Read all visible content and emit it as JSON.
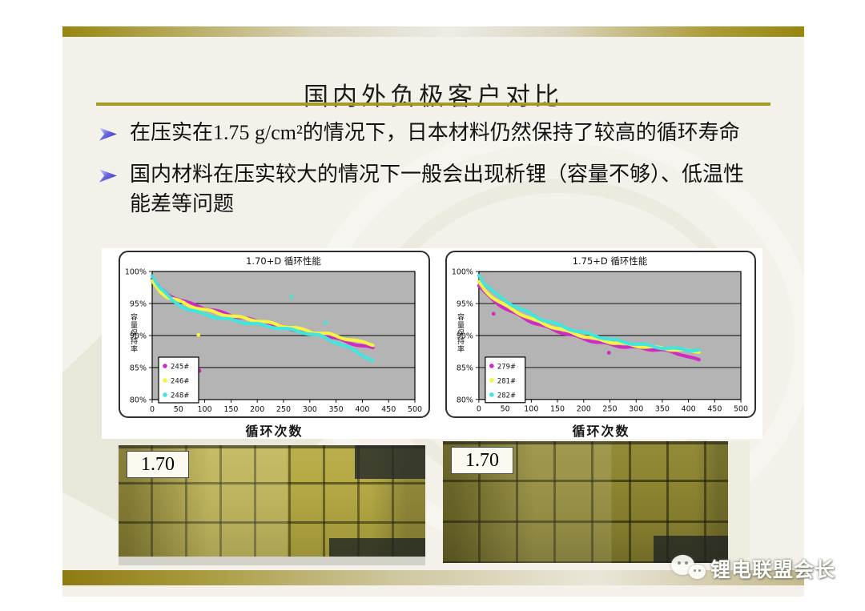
{
  "slide": {
    "title": "国内外负极客户对比",
    "bullets": [
      {
        "marker_icon": "arrow-bullet-icon",
        "text": "在压实在1.75 g/cm²的情况下，日本材料仍然保持了较高的循环寿命"
      },
      {
        "marker_icon": "arrow-bullet-icon",
        "text": "国内材料在压实较大的情况下一般会出现析锂（容量不够）、低温性能差等问题"
      }
    ]
  },
  "chart_data": [
    {
      "type": "scatter",
      "title": "1.70+D 循环性能",
      "xlabel": "循环次数",
      "ylabel": "容量保持率",
      "xlim": [
        0,
        500
      ],
      "ylim": [
        80,
        100
      ],
      "x_ticks": [
        0,
        50,
        100,
        150,
        200,
        250,
        300,
        350,
        400,
        450,
        500
      ],
      "y_ticks": [
        100,
        95,
        90,
        85,
        80
      ],
      "y_tick_labels": [
        "100%",
        "95%",
        "90%",
        "85%",
        "80%"
      ],
      "plot_bg": "#b4b4b4",
      "grid": true,
      "legend_position": "bottom-left",
      "series": [
        {
          "name": "245#",
          "color": "#cf2bc4",
          "points": [
            [
              0,
              98.8
            ],
            [
              15,
              97.3
            ],
            [
              30,
              96.4
            ],
            [
              50,
              95.7
            ],
            [
              70,
              95.0
            ],
            [
              100,
              94.3
            ],
            [
              130,
              93.6
            ],
            [
              160,
              93.0
            ],
            [
              190,
              92.4
            ],
            [
              220,
              91.9
            ],
            [
              250,
              91.3
            ],
            [
              280,
              90.8
            ],
            [
              310,
              90.3
            ],
            [
              335,
              89.9
            ],
            [
              355,
              89.4
            ],
            [
              375,
              88.9
            ],
            [
              395,
              88.5
            ],
            [
              420,
              88.0
            ]
          ]
        },
        {
          "name": "246#",
          "color": "#f5f542",
          "points": [
            [
              0,
              98.4
            ],
            [
              15,
              96.9
            ],
            [
              30,
              96.0
            ],
            [
              50,
              95.4
            ],
            [
              70,
              94.7
            ],
            [
              100,
              94.0
            ],
            [
              130,
              93.4
            ],
            [
              160,
              92.9
            ],
            [
              190,
              92.5
            ],
            [
              220,
              92.0
            ],
            [
              250,
              91.5
            ],
            [
              280,
              91.0
            ],
            [
              310,
              90.5
            ],
            [
              335,
              90.2
            ],
            [
              355,
              89.8
            ],
            [
              375,
              89.4
            ],
            [
              395,
              89.0
            ],
            [
              420,
              88.6
            ]
          ]
        },
        {
          "name": "248#",
          "color": "#40e6de",
          "points": [
            [
              0,
              99.4
            ],
            [
              12,
              97.8
            ],
            [
              25,
              96.6
            ],
            [
              40,
              95.3
            ],
            [
              60,
              94.4
            ],
            [
              90,
              93.5
            ],
            [
              120,
              92.9
            ],
            [
              150,
              92.4
            ],
            [
              180,
              92.0
            ],
            [
              210,
              91.6
            ],
            [
              240,
              91.2
            ],
            [
              270,
              90.8
            ],
            [
              300,
              90.3
            ],
            [
              320,
              89.9
            ],
            [
              340,
              89.3
            ],
            [
              360,
              88.6
            ],
            [
              380,
              87.8
            ],
            [
              400,
              87.0
            ],
            [
              420,
              86.1
            ]
          ]
        }
      ],
      "outliers": [
        {
          "color": "#cf2bc4",
          "point": [
            90,
            84.5
          ]
        },
        {
          "color": "#f5f542",
          "point": [
            88,
            90.1
          ]
        },
        {
          "color": "#40e6de",
          "point": [
            265,
            96.0
          ]
        },
        {
          "color": "#40e6de",
          "point": [
            330,
            92.0
          ]
        }
      ]
    },
    {
      "type": "scatter",
      "title": "1.75+D 循环性能",
      "xlabel": "循环次数",
      "ylabel": "容量保持率",
      "xlim": [
        0,
        500
      ],
      "ylim": [
        80,
        100
      ],
      "x_ticks": [
        0,
        50,
        100,
        150,
        200,
        250,
        300,
        350,
        400,
        450,
        500
      ],
      "y_ticks": [
        100,
        95,
        90,
        85,
        80
      ],
      "y_tick_labels": [
        "100%",
        "95%",
        "90%",
        "85%",
        "80%"
      ],
      "plot_bg": "#b4b4b4",
      "grid": true,
      "legend_position": "bottom-left",
      "series": [
        {
          "name": "279#",
          "color": "#cf2bc4",
          "points": [
            [
              0,
              97.8
            ],
            [
              10,
              96.8
            ],
            [
              25,
              95.7
            ],
            [
              40,
              94.8
            ],
            [
              60,
              93.8
            ],
            [
              80,
              93.0
            ],
            [
              100,
              92.2
            ],
            [
              125,
              91.4
            ],
            [
              150,
              90.7
            ],
            [
              175,
              90.1
            ],
            [
              200,
              89.5
            ],
            [
              225,
              89.0
            ],
            [
              250,
              88.6
            ],
            [
              275,
              88.3
            ],
            [
              300,
              88.1
            ],
            [
              325,
              87.9
            ],
            [
              350,
              87.7
            ],
            [
              370,
              87.4
            ],
            [
              390,
              87.0
            ],
            [
              405,
              86.5
            ],
            [
              420,
              86.1
            ]
          ]
        },
        {
          "name": "281#",
          "color": "#f5f542",
          "points": [
            [
              0,
              98.3
            ],
            [
              10,
              97.2
            ],
            [
              25,
              96.1
            ],
            [
              40,
              95.2
            ],
            [
              60,
              94.2
            ],
            [
              80,
              93.4
            ],
            [
              100,
              92.6
            ],
            [
              125,
              91.8
            ],
            [
              150,
              91.1
            ],
            [
              175,
              90.5
            ],
            [
              200,
              89.9
            ],
            [
              225,
              89.4
            ],
            [
              250,
              89.0
            ],
            [
              275,
              88.7
            ],
            [
              300,
              88.4
            ],
            [
              325,
              88.2
            ],
            [
              350,
              88.0
            ],
            [
              375,
              87.8
            ],
            [
              400,
              87.6
            ],
            [
              420,
              87.5
            ]
          ]
        },
        {
          "name": "282#",
          "color": "#40e6de",
          "points": [
            [
              0,
              99.5
            ],
            [
              10,
              98.2
            ],
            [
              25,
              97.0
            ],
            [
              40,
              96.0
            ],
            [
              60,
              95.0
            ],
            [
              80,
              94.1
            ],
            [
              100,
              93.3
            ],
            [
              125,
              92.4
            ],
            [
              150,
              91.7
            ],
            [
              175,
              91.0
            ],
            [
              200,
              90.4
            ],
            [
              225,
              89.9
            ],
            [
              250,
              89.4
            ],
            [
              275,
              89.0
            ],
            [
              300,
              88.7
            ],
            [
              325,
              88.4
            ],
            [
              350,
              88.1
            ],
            [
              375,
              87.9
            ],
            [
              400,
              87.8
            ],
            [
              420,
              87.7
            ]
          ]
        }
      ],
      "outliers": [
        {
          "color": "#cf2bc4",
          "point": [
            28,
            93.4
          ]
        },
        {
          "color": "#cf2bc4",
          "point": [
            248,
            87.3
          ]
        }
      ]
    }
  ],
  "photos": [
    {
      "label": "1.70"
    },
    {
      "label": "1.70"
    }
  ],
  "watermark": {
    "icon": "wechat-icon",
    "text": "锂电联盟会长"
  },
  "colors": {
    "slide_bg": "#f3f1e9",
    "gold_bar": "#97860f",
    "title_underline": "#a39b26",
    "bullet_marker": "#2f2bbf",
    "plot_bg": "#b4b4b4",
    "series_magenta": "#cf2bc4",
    "series_yellow": "#f5f542",
    "series_cyan": "#40e6de"
  }
}
